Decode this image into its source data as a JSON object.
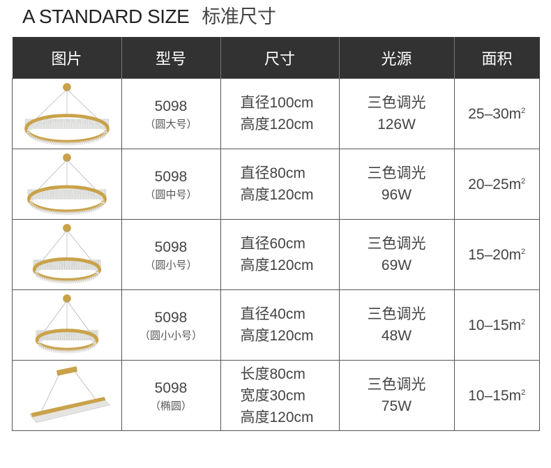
{
  "title": {
    "en": "A STANDARD SIZE",
    "cn": "标准尺寸"
  },
  "table": {
    "headers": [
      "图片",
      "型号",
      "尺寸",
      "光源",
      "面积"
    ],
    "rows": [
      {
        "image": "round-chandelier-large",
        "model": "5098",
        "variant": "（圆大号）",
        "size": [
          "直径100cm",
          "高度120cm"
        ],
        "light": "三色调光",
        "power": "126W",
        "area": "25–30m",
        "area_sup": "2"
      },
      {
        "image": "round-chandelier-medium",
        "model": "5098",
        "variant": "（圆中号）",
        "size": [
          "直径80cm",
          "高度120cm"
        ],
        "light": "三色调光",
        "power": "96W",
        "area": "20–25m",
        "area_sup": "2"
      },
      {
        "image": "round-chandelier-small",
        "model": "5098",
        "variant": "（圆小号）",
        "size": [
          "直径60cm",
          "高度120cm"
        ],
        "light": "三色调光",
        "power": "69W",
        "area": "15–20m",
        "area_sup": "2"
      },
      {
        "image": "round-chandelier-extra-small",
        "model": "5098",
        "variant": "（圆小小号）",
        "size": [
          "直径40cm",
          "高度120cm"
        ],
        "light": "三色调光",
        "power": "48W",
        "area": "10–15m",
        "area_sup": "2"
      },
      {
        "image": "oval-chandelier",
        "model": "5098",
        "variant": "（椭圆）",
        "size": [
          "长度80cm",
          "宽度30cm",
          "高度120cm"
        ],
        "light": "三色调光",
        "power": "75W",
        "area": "10–15m",
        "area_sup": "2"
      }
    ]
  },
  "colors": {
    "header_bg": "#323233",
    "gold": "#c9a24a"
  }
}
